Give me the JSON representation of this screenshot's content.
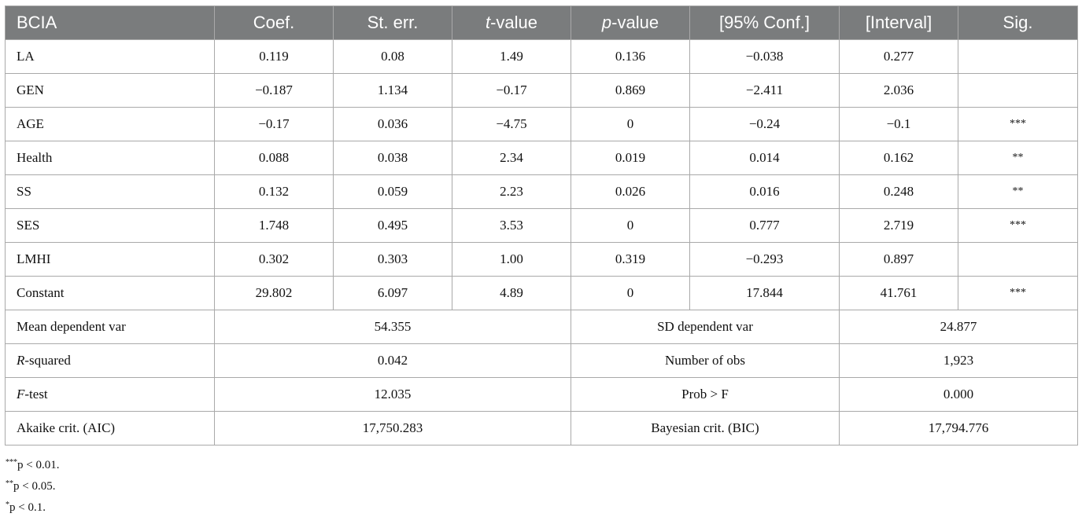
{
  "table": {
    "header": {
      "var": "BCIA",
      "coef": "Coef.",
      "se": "St. err.",
      "t_italic": "t",
      "t_rest": "-value",
      "p_italic": "p",
      "p_rest": "-value",
      "ci_low": "[95% Conf.]",
      "ci_high": "[Interval]",
      "sig": "Sig."
    },
    "rows": [
      {
        "var": "LA",
        "coef": "0.119",
        "se": "0.08",
        "t": "1.49",
        "p": "0.136",
        "ci_low": "−0.038",
        "ci_high": "0.277",
        "sig": ""
      },
      {
        "var": "GEN",
        "coef": "−0.187",
        "se": "1.134",
        "t": "−0.17",
        "p": "0.869",
        "ci_low": "−2.411",
        "ci_high": "2.036",
        "sig": ""
      },
      {
        "var": "AGE",
        "coef": "−0.17",
        "se": "0.036",
        "t": "−4.75",
        "p": "0",
        "ci_low": "−0.24",
        "ci_high": "−0.1",
        "sig": "***"
      },
      {
        "var": "Health",
        "coef": "0.088",
        "se": "0.038",
        "t": "2.34",
        "p": "0.019",
        "ci_low": "0.014",
        "ci_high": "0.162",
        "sig": "**"
      },
      {
        "var": "SS",
        "coef": "0.132",
        "se": "0.059",
        "t": "2.23",
        "p": "0.026",
        "ci_low": "0.016",
        "ci_high": "0.248",
        "sig": "**"
      },
      {
        "var": "SES",
        "coef": "1.748",
        "se": "0.495",
        "t": "3.53",
        "p": "0",
        "ci_low": "0.777",
        "ci_high": "2.719",
        "sig": "***"
      },
      {
        "var": "LMHI",
        "coef": "0.302",
        "se": "0.303",
        "t": "1.00",
        "p": "0.319",
        "ci_low": "−0.293",
        "ci_high": "0.897",
        "sig": ""
      },
      {
        "var": "Constant",
        "coef": "29.802",
        "se": "6.097",
        "t": "4.89",
        "p": "0",
        "ci_low": "17.844",
        "ci_high": "41.761",
        "sig": "***"
      }
    ],
    "stats": [
      {
        "label_pre": "",
        "label_italic": "",
        "label_post": "Mean dependent var",
        "value": "54.355",
        "label2": "SD dependent var",
        "value2": "24.877"
      },
      {
        "label_pre": "",
        "label_italic": "R",
        "label_post": "-squared",
        "value": "0.042",
        "label2": "Number of obs",
        "value2": "1,923"
      },
      {
        "label_pre": "",
        "label_italic": "F",
        "label_post": "-test",
        "value": "12.035",
        "label2": "Prob > F",
        "value2": "0.000"
      },
      {
        "label_pre": "",
        "label_italic": "",
        "label_post": "Akaike crit. (AIC)",
        "value": "17,750.283",
        "label2": "Bayesian crit. (BIC)",
        "value2": "17,794.776"
      }
    ]
  },
  "notes": [
    {
      "stars": "***",
      "text": "p < 0.01."
    },
    {
      "stars": "**",
      "text": "p < 0.05."
    },
    {
      "stars": "*",
      "text": "p < 0.1."
    }
  ]
}
